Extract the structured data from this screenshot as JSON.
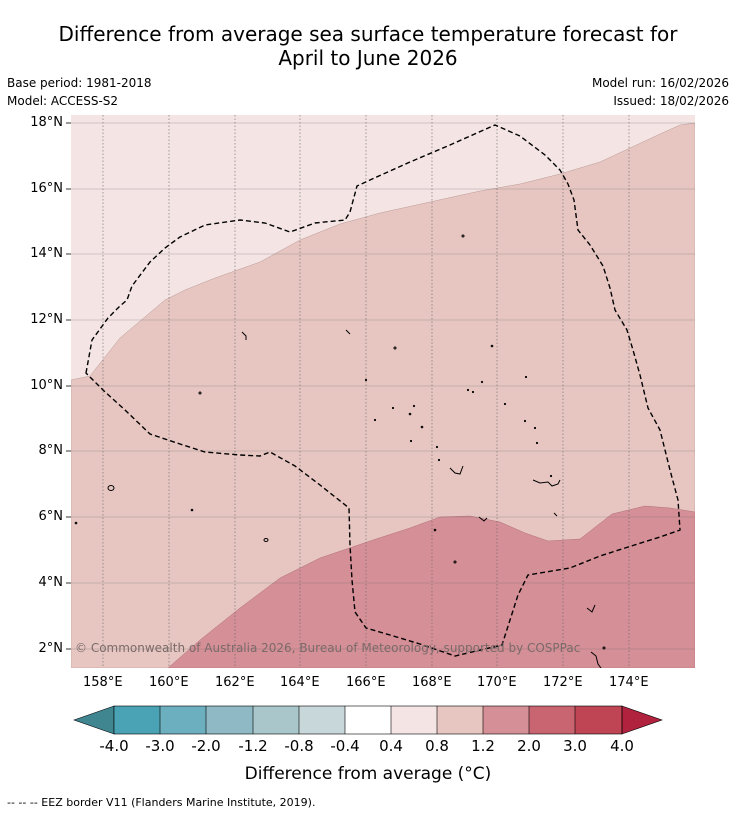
{
  "title_line1": "Difference from average sea surface temperature forecast for",
  "title_line2": "April to June 2026",
  "base_period": "Base period: 1981-2018",
  "model": "Model: ACCESS-S2",
  "model_run": "Model run: 16/02/2026",
  "issued": "Issued: 18/02/2026",
  "copyright": "© Commonwealth of Australia 2026, Bureau of Meteorology, supported by COSPPac",
  "footer": "--  --  -- EEZ border V11 (Flanders Marine Institute, 2019).",
  "colorbar_title": "Difference from average (°C)",
  "lat_labels": [
    "18°N",
    "16°N",
    "14°N",
    "12°N",
    "10°N",
    "8°N",
    "6°N",
    "4°N",
    "2°N"
  ],
  "lon_labels": [
    "158°E",
    "160°E",
    "162°E",
    "164°E",
    "166°E",
    "168°E",
    "170°E",
    "172°E",
    "174°E"
  ],
  "colorbar_labels": [
    "-4.0",
    "-3.0",
    "-2.0",
    "-1.2",
    "-0.8",
    "-0.4",
    "0.4",
    "0.8",
    "1.2",
    "2.0",
    "3.0",
    "4.0"
  ],
  "colorbar_colors": [
    "#3f8691",
    "#4aa3b5",
    "#6cb0bf",
    "#8fbac5",
    "#a9c6cb",
    "#c8d7d9",
    "#ffffff",
    "#f4e5e4",
    "#e7c6c1",
    "#d58f96",
    "#c96570",
    "#bf4555"
  ],
  "colorbar_extend_low": "#3f8691",
  "colorbar_extend_high": "#b0223d",
  "map_colors": {
    "band_04_08": "#f4e5e4",
    "band_08_12": "#e7c6c1",
    "band_12_20": "#d58f96"
  }
}
